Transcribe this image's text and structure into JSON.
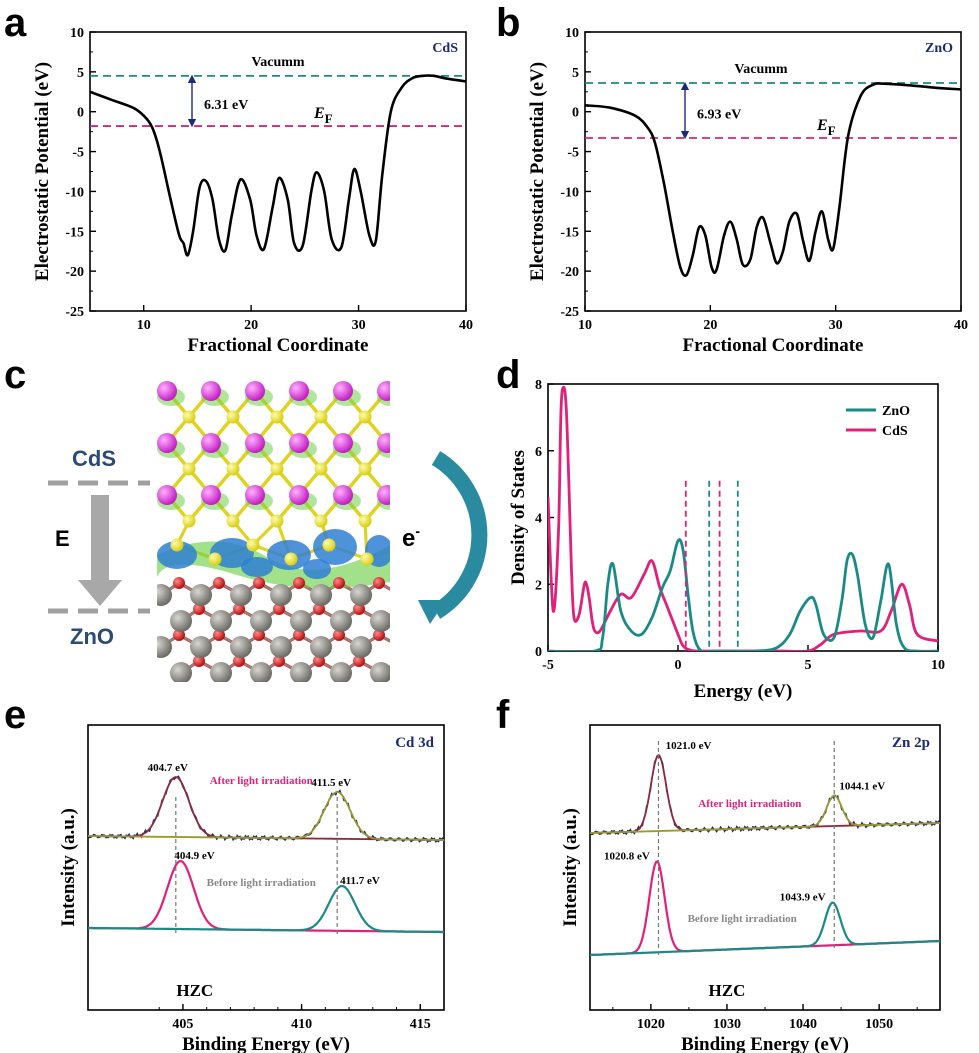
{
  "panels": {
    "a": "a",
    "b": "b",
    "c": "c",
    "d": "d",
    "e": "e",
    "f": "f"
  },
  "colors": {
    "curve": "#000000",
    "vacuum_line": "#1a8a86",
    "fermi_line": "#d6267a",
    "zno": "#1a8a86",
    "cds": "#e0207a",
    "fit_after": "#8b2a3c",
    "fit_after_peak2": "#9a9a2a",
    "raw": "#1b2a7a",
    "sulfur": "#e8e02a",
    "cadmium": "#d63ad6",
    "zinc": "#8c8a84",
    "oxygen": "#d81e1e",
    "charge_depletion": "#2f7fd4",
    "charge_accum": "#6fd14a",
    "arrow_e": "#2a8aa0"
  },
  "panel_c": {
    "top_label": "CdS",
    "field_label": "E",
    "bottom_label": "ZnO",
    "electron_label": "e",
    "electron_sup": "-"
  },
  "chart_data": [
    {
      "id": "a",
      "type": "line",
      "xlabel": "Fractional Coordinate",
      "ylabel": "Electrostatic Potential (eV)",
      "xlim": [
        5,
        40
      ],
      "ylim": [
        -25,
        10
      ],
      "xticks": [
        10,
        20,
        30,
        40
      ],
      "yticks": [
        10,
        5,
        0,
        -5,
        -10,
        -15,
        -20,
        -25
      ],
      "legend": "CdS",
      "annotations": {
        "vacuum": "Vacumm",
        "gap": "6.31 eV",
        "fermi": "E",
        "fermi_sub": "F"
      },
      "vacuum_level": 4.5,
      "fermi_level": -1.8,
      "x": [
        5,
        7,
        9,
        10,
        10.8,
        11.5,
        12.5,
        13.3,
        13.7,
        14.1,
        14.6,
        15.2,
        15.8,
        16.4,
        17,
        17.6,
        18.2,
        19,
        19.9,
        20.5,
        21.2,
        22,
        22.6,
        23.4,
        24,
        24.8,
        25.6,
        26.1,
        26.8,
        27.5,
        28.4,
        29.1,
        29.6,
        30.2,
        31,
        31.6,
        32.2,
        33,
        34,
        35,
        36,
        37,
        38,
        40
      ],
      "y": [
        2.5,
        1.5,
        0.5,
        -0.5,
        -2,
        -5,
        -11,
        -15.5,
        -16.5,
        -18,
        -15,
        -9.5,
        -8.7,
        -11,
        -16,
        -17.4,
        -13,
        -8.5,
        -11,
        -15.5,
        -17.2,
        -12,
        -8.3,
        -11,
        -16.5,
        -16.8,
        -10,
        -7.6,
        -10,
        -16,
        -17,
        -11,
        -7.2,
        -10,
        -15.5,
        -16.2,
        -8,
        0,
        3,
        4.2,
        4.5,
        4.5,
        4.2,
        3.8
      ]
    },
    {
      "id": "b",
      "type": "line",
      "xlabel": "Fractional Coordinate",
      "ylabel": "Electrostatic Potential (eV)",
      "xlim": [
        10,
        40
      ],
      "ylim": [
        -25,
        10
      ],
      "xticks": [
        10,
        20,
        30,
        40
      ],
      "yticks": [
        10,
        5,
        0,
        -5,
        -10,
        -15,
        -20,
        -25
      ],
      "legend": "ZnO",
      "annotations": {
        "vacuum": "Vacumm",
        "gap": "6.93 eV",
        "fermi": "E",
        "fermi_sub": "F"
      },
      "vacuum_level": 3.6,
      "fermi_level": -3.3,
      "x": [
        10,
        12,
        14,
        15,
        15.6,
        16.3,
        17,
        17.6,
        18.1,
        18.6,
        19.1,
        19.6,
        20.1,
        20.5,
        21.1,
        21.6,
        22.1,
        22.6,
        23.2,
        23.7,
        24.2,
        24.8,
        25.3,
        25.8,
        26.3,
        26.9,
        27.4,
        27.9,
        28.4,
        28.9,
        29.4,
        29.8,
        30.3,
        31,
        32,
        33,
        34,
        36,
        38,
        40
      ],
      "y": [
        0.8,
        0.5,
        -0.5,
        -2,
        -4,
        -9,
        -15,
        -19.5,
        -20.5,
        -18,
        -14.5,
        -15.5,
        -19.5,
        -19.8,
        -15.5,
        -13.8,
        -16,
        -19.2,
        -18.5,
        -14.5,
        -13.3,
        -16.5,
        -19,
        -17.5,
        -13.8,
        -12.8,
        -16.2,
        -18.7,
        -15,
        -12.5,
        -16,
        -17.2,
        -12,
        -3,
        2,
        3.4,
        3.5,
        3.3,
        3.0,
        2.8
      ]
    },
    {
      "id": "d",
      "type": "line",
      "xlabel": "Energy (eV)",
      "ylabel": "Density of States",
      "xlim": [
        -5,
        10
      ],
      "ylim": [
        0,
        8
      ],
      "xticks": [
        -5,
        0,
        5,
        10
      ],
      "yticks": [
        0,
        2,
        4,
        6,
        8
      ],
      "legend_position": "top-right",
      "series": [
        {
          "name": "ZnO",
          "x": [
            -5,
            -3.2,
            -2.9,
            -2.7,
            -2.5,
            -2.2,
            -1.8,
            -1.4,
            -1,
            -0.6,
            -0.3,
            0,
            0.2,
            0.4,
            0.6,
            0.9,
            1.5,
            3,
            3.8,
            4.3,
            4.7,
            5.1,
            5.3,
            5.6,
            6,
            6.3,
            6.5,
            6.7,
            6.9,
            7.2,
            7.5,
            7.8,
            8.1,
            8.4,
            8.7,
            9.2,
            10
          ],
          "y": [
            0,
            0,
            0.4,
            2,
            2.6,
            1.2,
            0.6,
            0.5,
            1,
            1.9,
            2.4,
            3.3,
            3,
            1.6,
            0.5,
            0,
            0,
            0,
            0.1,
            0.5,
            1.2,
            1.6,
            1.4,
            0.5,
            0.4,
            1.5,
            2.7,
            2.9,
            2.3,
            0.8,
            0.4,
            1.5,
            2.6,
            0.8,
            0.1,
            0,
            0
          ]
        },
        {
          "name": "CdS",
          "x": [
            -5,
            -4.8,
            -4.6,
            -4.5,
            -4.4,
            -4.3,
            -4.2,
            -4.1,
            -4,
            -3.8,
            -3.6,
            -3.5,
            -3.4,
            -3.3,
            -3.2,
            -3,
            -2.6,
            -2.2,
            -1.8,
            -1.3,
            -1,
            -0.7,
            -0.4,
            0,
            0.2,
            0.5,
            1,
            2,
            3,
            4,
            5,
            5.5,
            6,
            7,
            7.8,
            8.2,
            8.6,
            8.9,
            9.2,
            10
          ],
          "y": [
            4.6,
            1.2,
            3.5,
            7.2,
            7.9,
            7.3,
            5.1,
            2.5,
            1,
            1.1,
            2.0,
            1.95,
            1.5,
            0.9,
            0.6,
            0.6,
            1.2,
            1.7,
            1.6,
            2.3,
            2.7,
            1.9,
            1.3,
            0.5,
            0.15,
            0.02,
            0,
            0,
            0,
            0,
            0,
            0.2,
            0.5,
            0.6,
            0.6,
            1.2,
            2.0,
            1.4,
            0.5,
            0.3
          ]
        }
      ],
      "markers": [
        {
          "x": 0.3,
          "series": "CdS"
        },
        {
          "x": 1.2,
          "series": "ZnO"
        },
        {
          "x": 1.6,
          "series": "CdS"
        },
        {
          "x": 2.3,
          "series": "ZnO"
        }
      ]
    },
    {
      "id": "e",
      "type": "line",
      "xlabel": "Binding Energy (eV)",
      "ylabel": "Intensity (a.u.)",
      "xlim": [
        401,
        416
      ],
      "xticks": [
        405,
        410,
        415
      ],
      "legend": "Cd 3d",
      "sample": "HZC",
      "after_label": "After light irradiation",
      "before_label": "Before light irradiation",
      "peaks_after": [
        {
          "x": 404.7,
          "label": "404.7 eV",
          "height": 1.0
        },
        {
          "x": 411.5,
          "label": "411.5 eV",
          "height": 0.78
        }
      ],
      "peaks_before": [
        {
          "x": 404.9,
          "label": "404.9 eV",
          "height": 1.0
        },
        {
          "x": 411.7,
          "label": "411.7 eV",
          "height": 0.66
        }
      ]
    },
    {
      "id": "f",
      "type": "line",
      "xlabel": "Binding Energy (eV)",
      "ylabel": "Intensity (a.u.)",
      "xlim": [
        1012,
        1058
      ],
      "xticks": [
        1020,
        1030,
        1040,
        1050
      ],
      "legend": "Zn 2p",
      "sample": "HZC",
      "after_label": "After light irradiation",
      "before_label": "Before light irradiation",
      "peaks_after": [
        {
          "x": 1021.0,
          "label": "1021.0 eV",
          "height": 1.0
        },
        {
          "x": 1044.1,
          "label": "1044.1 eV",
          "height": 0.4
        }
      ],
      "peaks_before": [
        {
          "x": 1020.8,
          "label": "1020.8 eV",
          "height": 1.0
        },
        {
          "x": 1043.9,
          "label": "1043.9 eV",
          "height": 0.47
        }
      ]
    }
  ]
}
